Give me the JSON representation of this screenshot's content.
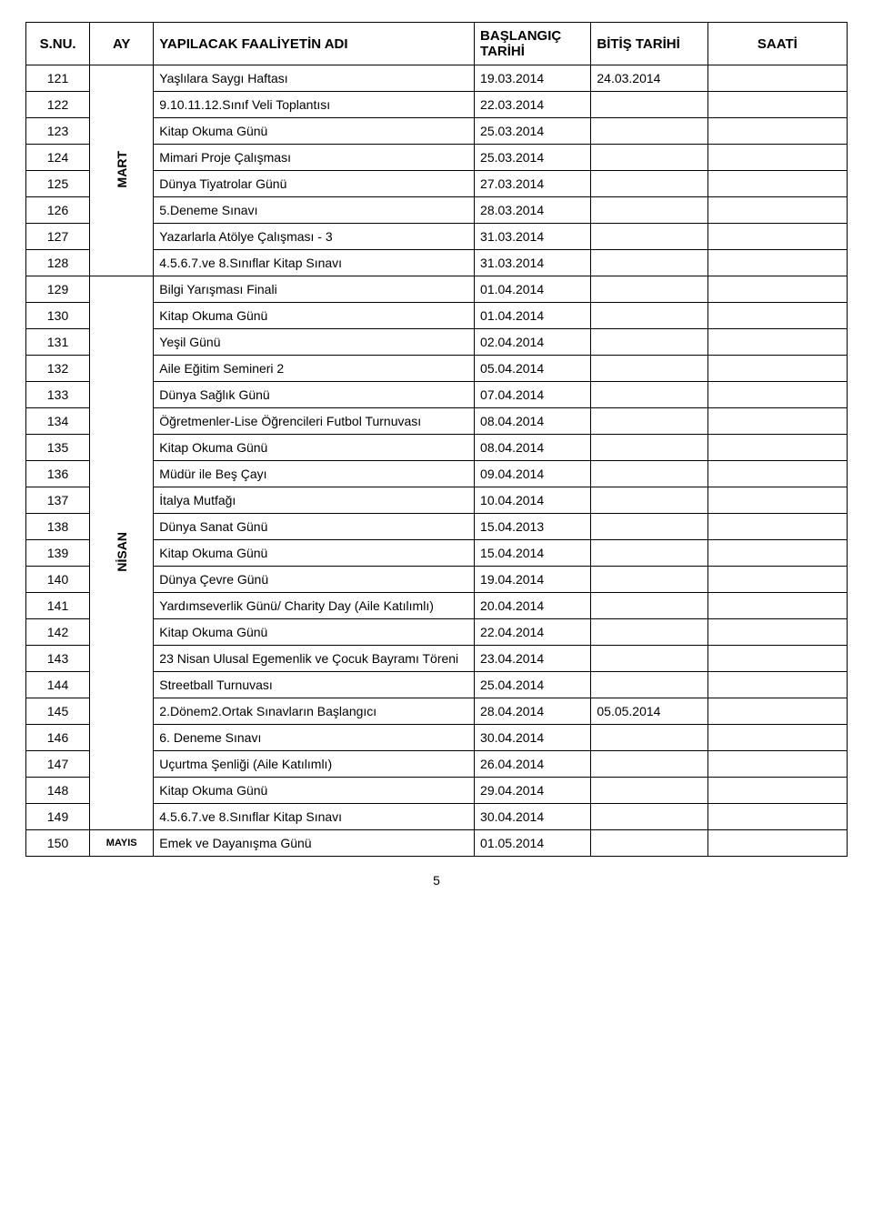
{
  "headers": {
    "sn": "S.NU.",
    "ay": "AY",
    "name": "YAPILACAK FAALİYETİN ADI",
    "start": "BAŞLANGIÇ TARİHİ",
    "end": "BİTİŞ TARİHİ",
    "saat": "SAATİ"
  },
  "months": {
    "mart": "MART",
    "nisan": "NİSAN",
    "mayis": "MAYIS"
  },
  "rows": [
    {
      "sn": "121",
      "name": "Yaşlılara Saygı Haftası",
      "start": "19.03.2014",
      "end": "24.03.2014",
      "saat": ""
    },
    {
      "sn": "122",
      "name": "9.10.11.12.Sınıf Veli Toplantısı",
      "start": "22.03.2014",
      "end": "",
      "saat": ""
    },
    {
      "sn": "123",
      "name": "Kitap Okuma Günü",
      "start": "25.03.2014",
      "end": "",
      "saat": ""
    },
    {
      "sn": "124",
      "name": "Mimari Proje Çalışması",
      "start": "25.03.2014",
      "end": "",
      "saat": ""
    },
    {
      "sn": "125",
      "name": "Dünya Tiyatrolar Günü",
      "start": "27.03.2014",
      "end": "",
      "saat": ""
    },
    {
      "sn": "126",
      "name": "5.Deneme Sınavı",
      "start": "28.03.2014",
      "end": "",
      "saat": ""
    },
    {
      "sn": "127",
      "name": "Yazarlarla Atölye Çalışması - 3",
      "start": "31.03.2014",
      "end": "",
      "saat": ""
    },
    {
      "sn": "128",
      "name": "4.5.6.7.ve 8.Sınıflar Kitap Sınavı",
      "start": "31.03.2014",
      "end": "",
      "saat": ""
    },
    {
      "sn": "129",
      "name": "Bilgi Yarışması Finali",
      "start": "01.04.2014",
      "end": "",
      "saat": ""
    },
    {
      "sn": "130",
      "name": "Kitap Okuma Günü",
      "start": "01.04.2014",
      "end": "",
      "saat": ""
    },
    {
      "sn": "131",
      "name": "Yeşil Günü",
      "start": "02.04.2014",
      "end": "",
      "saat": ""
    },
    {
      "sn": "132",
      "name": "Aile Eğitim Semineri 2",
      "start": "05.04.2014",
      "end": "",
      "saat": ""
    },
    {
      "sn": "133",
      "name": "Dünya Sağlık Günü",
      "start": "07.04.2014",
      "end": "",
      "saat": ""
    },
    {
      "sn": "134",
      "name": "Öğretmenler-Lise Öğrencileri Futbol Turnuvası",
      "start": "08.04.2014",
      "end": "",
      "saat": ""
    },
    {
      "sn": "135",
      "name": "Kitap Okuma Günü",
      "start": "08.04.2014",
      "end": "",
      "saat": ""
    },
    {
      "sn": "136",
      "name": "Müdür ile Beş Çayı",
      "start": "09.04.2014",
      "end": "",
      "saat": ""
    },
    {
      "sn": "137",
      "name": "İtalya Mutfağı",
      "start": "10.04.2014",
      "end": "",
      "saat": ""
    },
    {
      "sn": "138",
      "name": "Dünya Sanat Günü",
      "start": "15.04.2013",
      "end": "",
      "saat": ""
    },
    {
      "sn": "139",
      "name": "Kitap Okuma Günü",
      "start": "15.04.2014",
      "end": "",
      "saat": ""
    },
    {
      "sn": "140",
      "name": "Dünya Çevre Günü",
      "start": "19.04.2014",
      "end": "",
      "saat": ""
    },
    {
      "sn": "141",
      "name": "Yardımseverlik Günü/ Charity Day (Aile Katılımlı)",
      "start": "20.04.2014",
      "end": "",
      "saat": ""
    },
    {
      "sn": "142",
      "name": "Kitap Okuma Günü",
      "start": "22.04.2014",
      "end": "",
      "saat": ""
    },
    {
      "sn": "143",
      "name": "23 Nisan Ulusal Egemenlik ve Çocuk Bayramı Töreni",
      "start": "23.04.2014",
      "end": "",
      "saat": ""
    },
    {
      "sn": "144",
      "name": "Streetball Turnuvası",
      "start": "25.04.2014",
      "end": "",
      "saat": ""
    },
    {
      "sn": "145",
      "name": "2.Dönem2.Ortak Sınavların Başlangıcı",
      "start": "28.04.2014",
      "end": "05.05.2014",
      "saat": ""
    },
    {
      "sn": "146",
      "name": "6. Deneme Sınavı",
      "start": "30.04.2014",
      "end": "",
      "saat": ""
    },
    {
      "sn": "147",
      "name": "Uçurtma Şenliği (Aile Katılımlı)",
      "start": "26.04.2014",
      "end": "",
      "saat": ""
    },
    {
      "sn": "148",
      "name": "Kitap Okuma Günü",
      "start": "29.04.2014",
      "end": "",
      "saat": ""
    },
    {
      "sn": "149",
      "name": "4.5.6.7.ve 8.Sınıflar Kitap Sınavı",
      "start": "30.04.2014",
      "end": "",
      "saat": ""
    },
    {
      "sn": "150",
      "name": "Emek ve Dayanışma Günü",
      "start": "01.05.2014",
      "end": "",
      "saat": ""
    }
  ],
  "pageNumber": "5",
  "layout": {
    "martSpan": 8,
    "martStartRow": 0,
    "nisanSpan": 21,
    "nisanStartRow": 8,
    "mayisRow": 29
  }
}
